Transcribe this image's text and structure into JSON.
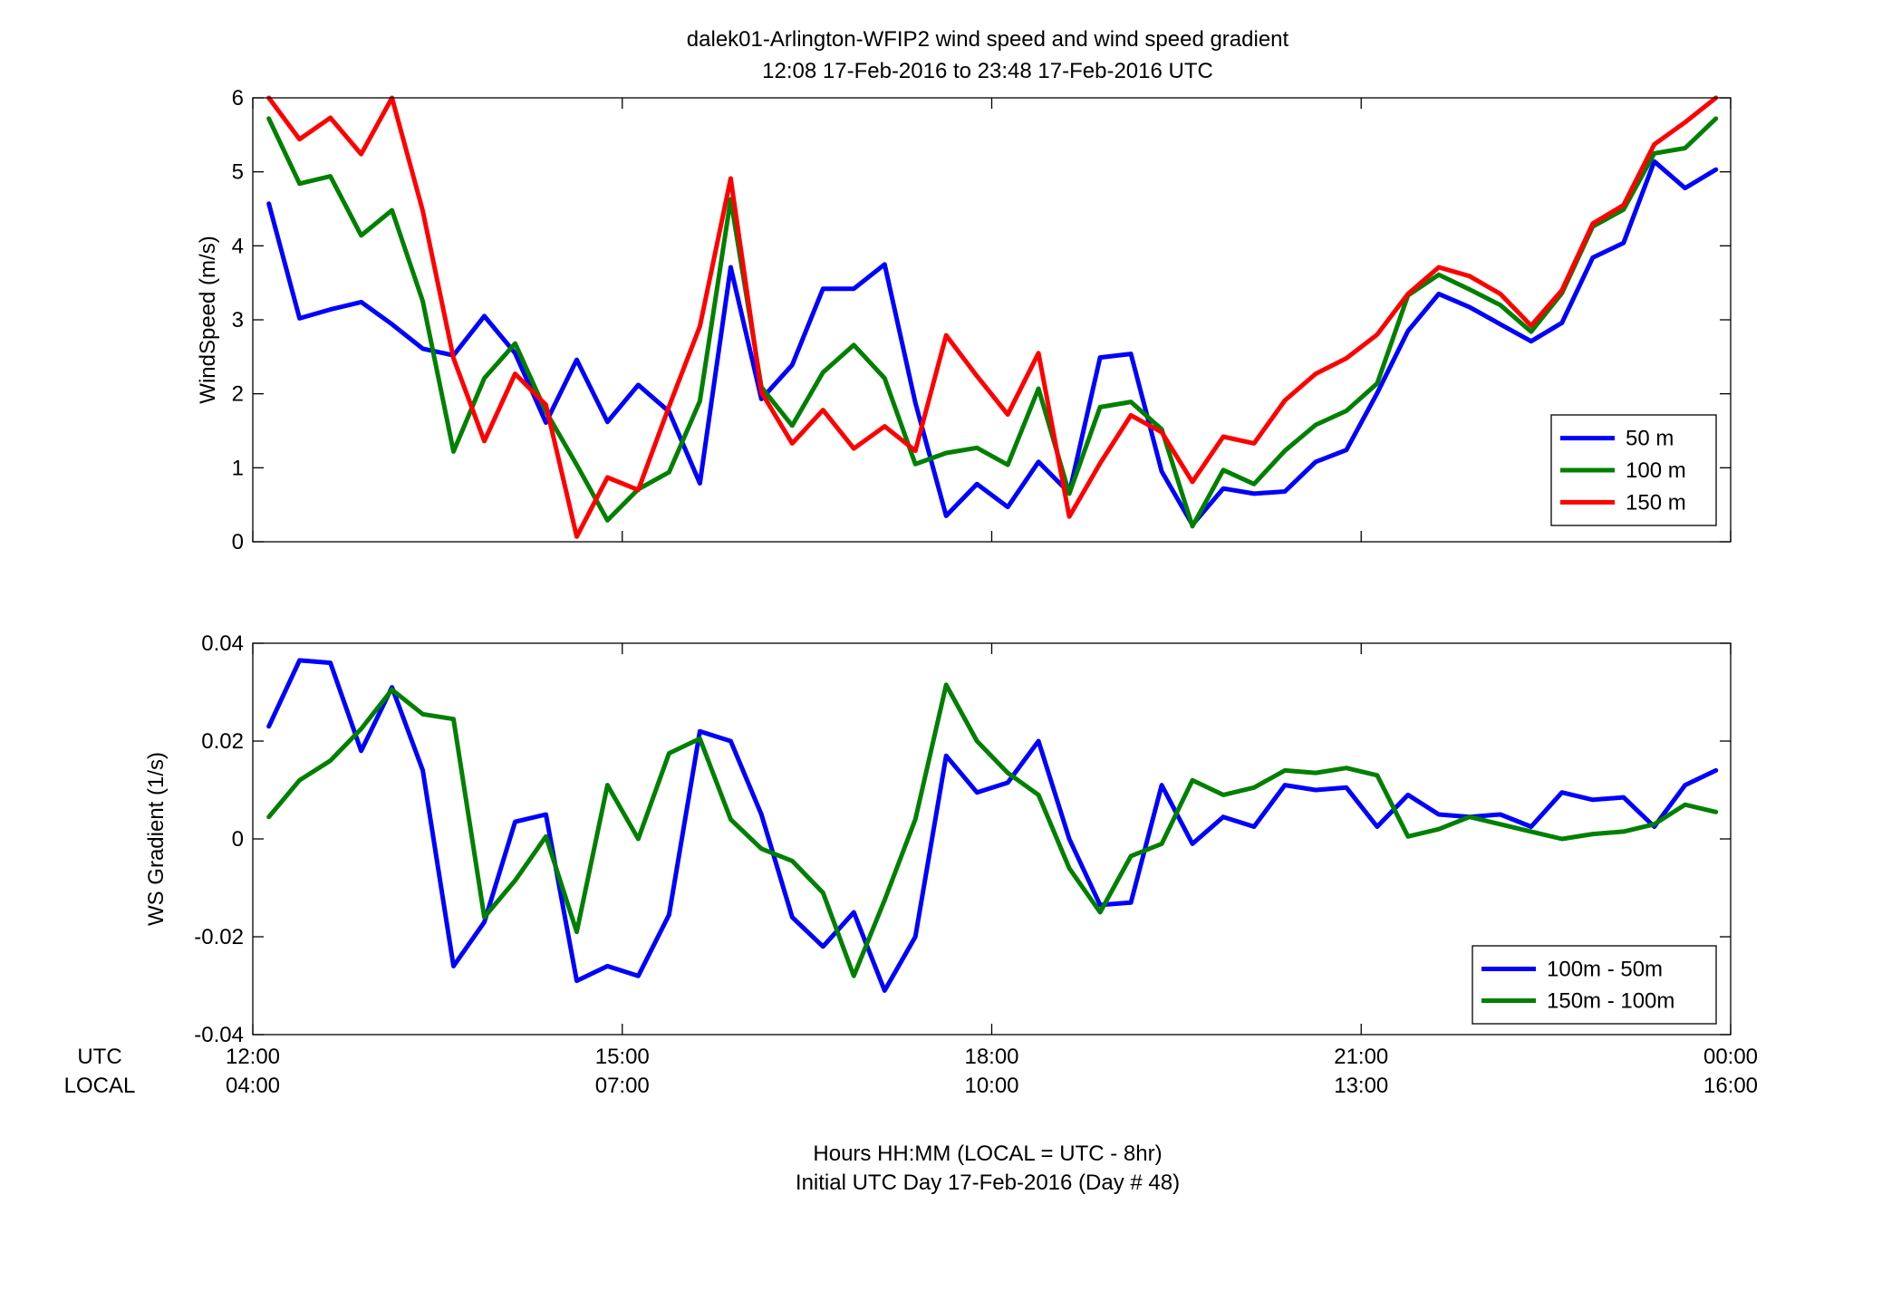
{
  "figure_title": [
    "dalek01-Arlington-WFIP2  wind speed and wind speed gradient",
    "12:08 17-Feb-2016 to 23:48 17-Feb-2016  UTC"
  ],
  "footer": [
    "Hours HH:MM  (LOCAL = UTC - 8hr)",
    "Initial UTC Day 17-Feb-2016 (Day # 48)"
  ],
  "row_labels": {
    "utc": "UTC",
    "local": "LOCAL"
  },
  "colors": {
    "blue": "#0000ff",
    "green": "#008000",
    "red": "#ff0000",
    "axis": "#000000"
  },
  "chart_data": [
    {
      "type": "line",
      "title": "",
      "xlabel": "",
      "ylabel": "WindSpeed (m/s)",
      "xlim": [
        0,
        12
      ],
      "ylim": [
        0,
        6
      ],
      "yticks": [
        0,
        1,
        2,
        3,
        4,
        5,
        6
      ],
      "ytick_labels": [
        "0",
        "1",
        "2",
        "3",
        "4",
        "5",
        "6"
      ],
      "xticks": [
        0,
        3,
        6,
        9,
        12
      ],
      "grid": false,
      "legend_position": "bottom-right",
      "x": [
        0.13,
        0.38,
        0.63,
        0.88,
        1.13,
        1.38,
        1.63,
        1.88,
        2.13,
        2.38,
        2.63,
        2.88,
        3.13,
        3.38,
        3.63,
        3.88,
        4.13,
        4.38,
        4.63,
        4.88,
        5.13,
        5.38,
        5.63,
        5.88,
        6.13,
        6.38,
        6.63,
        6.88,
        7.13,
        7.38,
        7.63,
        7.88,
        8.13,
        8.38,
        8.63,
        8.88,
        9.13,
        9.38,
        9.63,
        9.88,
        10.13,
        10.38,
        10.63,
        10.88,
        11.13,
        11.38,
        11.63,
        11.88
      ],
      "series": [
        {
          "name": "50 m",
          "color": "#0000ff",
          "values": [
            4.57,
            3.02,
            3.14,
            3.24,
            2.94,
            2.61,
            2.52,
            3.05,
            2.55,
            1.61,
            2.46,
            1.62,
            2.12,
            1.76,
            0.79,
            3.71,
            1.93,
            2.39,
            3.42,
            3.42,
            3.75,
            1.88,
            0.35,
            0.78,
            0.47,
            1.08,
            0.66,
            2.49,
            2.54,
            0.95,
            0.23,
            0.72,
            0.65,
            0.68,
            1.08,
            1.24,
            2.01,
            2.85,
            3.35,
            3.17,
            2.94,
            2.71,
            2.96,
            3.84,
            4.04,
            5.14,
            4.78,
            5.03
          ]
        },
        {
          "name": "100 m",
          "color": "#008000",
          "values": [
            5.72,
            4.84,
            4.94,
            4.14,
            4.48,
            3.25,
            1.22,
            2.21,
            2.68,
            1.76,
            1.04,
            0.29,
            0.71,
            0.94,
            1.9,
            4.63,
            2.09,
            1.57,
            2.29,
            2.66,
            2.21,
            1.05,
            1.2,
            1.27,
            1.04,
            2.07,
            0.65,
            1.82,
            1.89,
            1.52,
            0.21,
            0.97,
            0.78,
            1.23,
            1.58,
            1.77,
            2.14,
            3.33,
            3.61,
            3.41,
            3.2,
            2.84,
            3.36,
            4.26,
            4.49,
            5.25,
            5.32,
            5.72
          ]
        },
        {
          "name": "150 m",
          "color": "#ff0000",
          "values": [
            6.0,
            5.44,
            5.73,
            5.24,
            6.0,
            4.47,
            2.48,
            1.36,
            2.27,
            1.85,
            0.07,
            0.87,
            0.7,
            1.83,
            2.91,
            4.91,
            2.02,
            1.33,
            1.78,
            1.26,
            1.56,
            1.23,
            2.79,
            2.24,
            1.72,
            2.55,
            0.34,
            1.06,
            1.71,
            1.48,
            0.81,
            1.42,
            1.33,
            1.91,
            2.27,
            2.48,
            2.8,
            3.35,
            3.71,
            3.59,
            3.35,
            2.92,
            3.4,
            4.3,
            4.55,
            5.37,
            5.67,
            6.0
          ]
        }
      ]
    },
    {
      "type": "line",
      "title": "",
      "xlabel": "",
      "ylabel": "WS Gradient (1/s)",
      "xlim": [
        0,
        12
      ],
      "ylim": [
        -0.04,
        0.04
      ],
      "yticks": [
        -0.04,
        -0.02,
        0,
        0.02,
        0.04
      ],
      "ytick_labels": [
        "-0.04",
        "-0.02",
        "0",
        "0.02",
        "0.04"
      ],
      "xticks": [
        0,
        3,
        6,
        9,
        12
      ],
      "xtick_labels_utc": [
        "12:00",
        "15:00",
        "18:00",
        "21:00",
        "00:00"
      ],
      "xtick_labels_local": [
        "04:00",
        "07:00",
        "10:00",
        "13:00",
        "16:00"
      ],
      "grid": false,
      "legend_position": "bottom-right",
      "x": [
        0.13,
        0.38,
        0.63,
        0.88,
        1.13,
        1.38,
        1.63,
        1.88,
        2.13,
        2.38,
        2.63,
        2.88,
        3.13,
        3.38,
        3.63,
        3.88,
        4.13,
        4.38,
        4.63,
        4.88,
        5.13,
        5.38,
        5.63,
        5.88,
        6.13,
        6.38,
        6.63,
        6.88,
        7.13,
        7.38,
        7.63,
        7.88,
        8.13,
        8.38,
        8.63,
        8.88,
        9.13,
        9.38,
        9.63,
        9.88,
        10.13,
        10.38,
        10.63,
        10.88,
        11.13,
        11.38,
        11.63,
        11.88
      ],
      "series": [
        {
          "name": "100m - 50m",
          "color": "#0000ff",
          "values": [
            0.023,
            0.0365,
            0.036,
            0.018,
            0.031,
            0.014,
            -0.026,
            -0.017,
            0.0035,
            0.005,
            -0.029,
            -0.026,
            -0.028,
            -0.0155,
            0.022,
            0.02,
            0.005,
            -0.016,
            -0.022,
            -0.015,
            -0.031,
            -0.02,
            0.017,
            0.0095,
            0.0115,
            0.02,
            0.0,
            -0.0135,
            -0.013,
            0.011,
            -0.001,
            0.0045,
            0.0025,
            0.011,
            0.01,
            0.0105,
            0.0025,
            0.009,
            0.005,
            0.0045,
            0.005,
            0.0025,
            0.0095,
            0.008,
            0.0085,
            0.0025,
            0.011,
            0.014
          ]
        },
        {
          "name": "150m - 100m",
          "color": "#008000",
          "values": [
            0.0045,
            0.012,
            0.016,
            0.0225,
            0.0305,
            0.0255,
            0.0245,
            -0.016,
            -0.0085,
            0.0005,
            -0.019,
            0.011,
            0.0,
            0.0175,
            0.0205,
            0.004,
            -0.002,
            -0.0045,
            -0.011,
            -0.028,
            -0.0125,
            0.004,
            0.0315,
            0.02,
            0.0135,
            0.009,
            -0.006,
            -0.015,
            -0.0035,
            -0.001,
            0.012,
            0.009,
            0.0105,
            0.014,
            0.0135,
            0.0145,
            0.013,
            0.0005,
            0.002,
            0.0045,
            0.003,
            0.0015,
            0.0,
            0.001,
            0.0015,
            0.003,
            0.007,
            0.0055
          ]
        }
      ]
    }
  ]
}
